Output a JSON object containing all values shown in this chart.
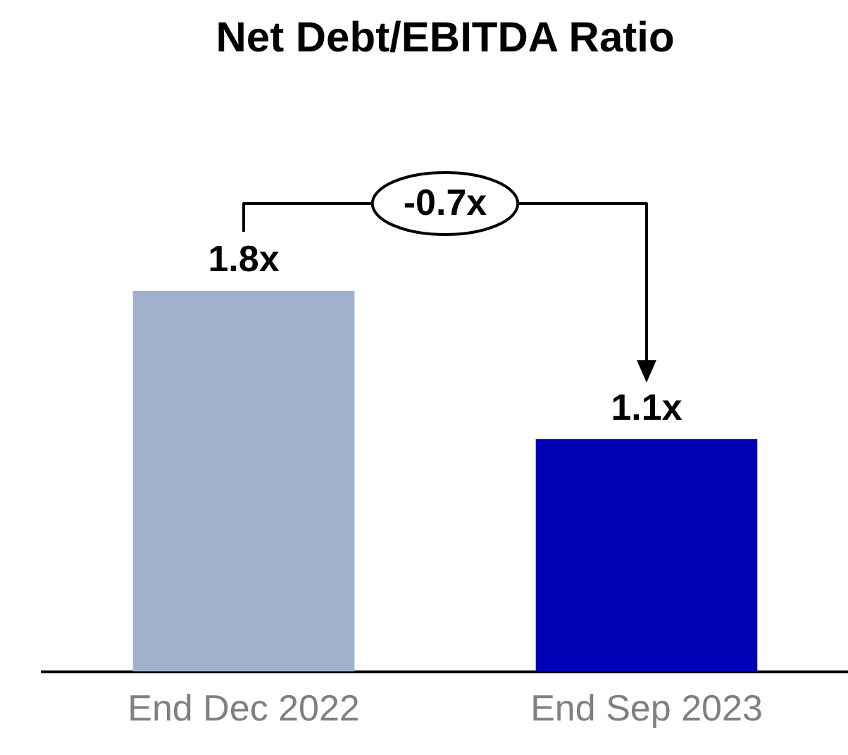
{
  "chart_data": {
    "type": "bar",
    "title": "Net Debt/EBITDA Ratio",
    "categories": [
      "End Dec 2022",
      "End Sep 2023"
    ],
    "values": [
      1.8,
      1.1
    ],
    "colors": [
      "#9fb1cd",
      "#0000b4"
    ],
    "value_labels": [
      "1.8x",
      "1.1x"
    ],
    "annotations": [
      "-0.7x"
    ],
    "grid": false,
    "legend": false
  }
}
